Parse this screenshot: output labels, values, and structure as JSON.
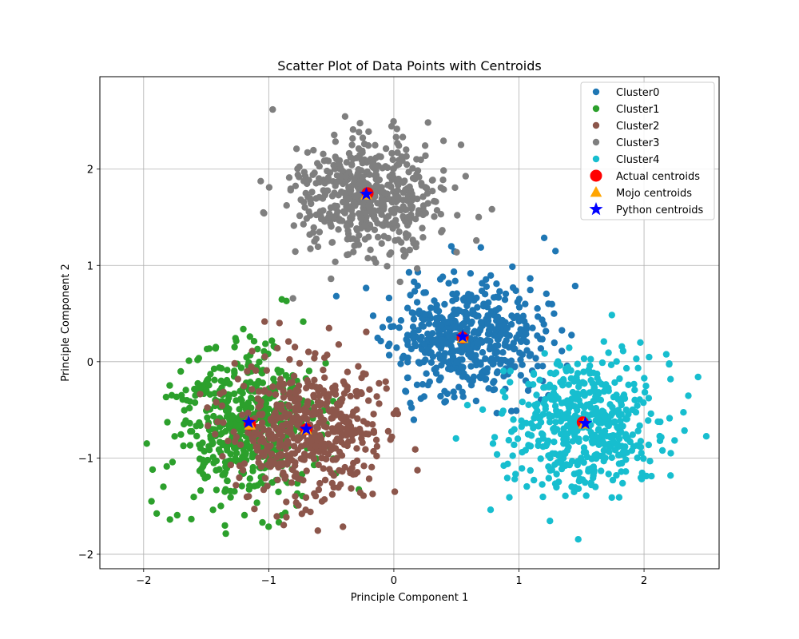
{
  "chart_data": {
    "type": "scatter",
    "title": "Scatter Plot of Data Points with Centroids",
    "xlabel": "Principle Component 1",
    "ylabel": "Principle Component 2",
    "xlim": [
      -2.35,
      2.6
    ],
    "ylim": [
      -2.15,
      2.96
    ],
    "xticks": [
      -2,
      -1,
      0,
      1,
      2
    ],
    "yticks": [
      -2,
      -1,
      0,
      1,
      2
    ],
    "grid": true,
    "legend_position": "top-right",
    "clusters": [
      {
        "name": "Cluster0",
        "color": "#1f77b4",
        "center": [
          0.58,
          0.25
        ],
        "spread": [
          0.3,
          0.3
        ],
        "count": 520,
        "seed": 11
      },
      {
        "name": "Cluster1",
        "color": "#2ca02c",
        "center": [
          -1.2,
          -0.68
        ],
        "spread": [
          0.27,
          0.4
        ],
        "count": 520,
        "seed": 23
      },
      {
        "name": "Cluster2",
        "color": "#8c564b",
        "center": [
          -0.68,
          -0.7
        ],
        "spread": [
          0.3,
          0.36
        ],
        "count": 520,
        "seed": 37
      },
      {
        "name": "Cluster3",
        "color": "#7f7f7f",
        "center": [
          -0.2,
          1.73
        ],
        "spread": [
          0.3,
          0.32
        ],
        "count": 520,
        "seed": 41
      },
      {
        "name": "Cluster4",
        "color": "#17becf",
        "center": [
          1.52,
          -0.65
        ],
        "spread": [
          0.3,
          0.35
        ],
        "count": 520,
        "seed": 53
      }
    ],
    "centroids": [
      {
        "name": "Actual centroids",
        "marker": "circle",
        "color": "#ff0000",
        "points": [
          [
            0.55,
            0.25
          ],
          [
            -1.15,
            -0.65
          ],
          [
            -0.7,
            -0.7
          ],
          [
            -0.21,
            1.75
          ],
          [
            1.51,
            -0.63
          ]
        ]
      },
      {
        "name": "Mojo centroids",
        "marker": "triangle",
        "color": "#ffa500",
        "points": [
          [
            0.55,
            0.24
          ],
          [
            -1.15,
            -0.66
          ],
          [
            -0.7,
            -0.71
          ],
          [
            -0.22,
            1.73
          ],
          [
            1.52,
            -0.65
          ]
        ]
      },
      {
        "name": "Python centroids",
        "marker": "star",
        "color": "#0000ff",
        "points": [
          [
            0.55,
            0.26
          ],
          [
            -1.16,
            -0.63
          ],
          [
            -0.7,
            -0.7
          ],
          [
            -0.22,
            1.74
          ],
          [
            1.53,
            -0.64
          ]
        ]
      }
    ]
  }
}
